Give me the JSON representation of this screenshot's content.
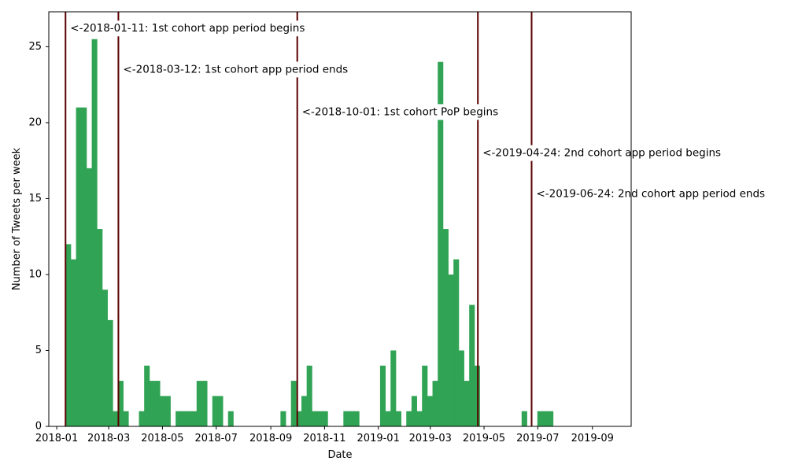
{
  "chart_data": {
    "type": "bar",
    "title": "",
    "xlabel": "Date",
    "ylabel": "Number of Tweets per week",
    "bar_color": "#31a354",
    "vline_color": "#5a0000",
    "ylim": [
      0,
      27.3
    ],
    "xlim": [
      "2017-12-23",
      "2019-10-15"
    ],
    "y_ticks": [
      0,
      5,
      10,
      15,
      20,
      25
    ],
    "x_ticks": [
      {
        "date": "2018-01-01",
        "label": "2018-01"
      },
      {
        "date": "2018-03-01",
        "label": "2018-03"
      },
      {
        "date": "2018-05-01",
        "label": "2018-05"
      },
      {
        "date": "2018-07-01",
        "label": "2018-07"
      },
      {
        "date": "2018-09-01",
        "label": "2018-09"
      },
      {
        "date": "2018-11-01",
        "label": "2018-11"
      },
      {
        "date": "2019-01-01",
        "label": "2019-01"
      },
      {
        "date": "2019-03-01",
        "label": "2019-03"
      },
      {
        "date": "2019-05-01",
        "label": "2019-05"
      },
      {
        "date": "2019-07-01",
        "label": "2019-07"
      },
      {
        "date": "2019-09-01",
        "label": "2019-09"
      }
    ],
    "bin_start": "2018-01-11",
    "bin_days": 5.95,
    "values": [
      12,
      11,
      21,
      21,
      17,
      25.5,
      13,
      9,
      7,
      1,
      3,
      1,
      0,
      0,
      1,
      4,
      3,
      3,
      2,
      2,
      0,
      1,
      1,
      1,
      1,
      3,
      3,
      0,
      2,
      2,
      0,
      1,
      0,
      0,
      0,
      0,
      0,
      0,
      0,
      0,
      0,
      1,
      0,
      3,
      1,
      2,
      4,
      1,
      1,
      1,
      0,
      0,
      0,
      1,
      1,
      1,
      0,
      0,
      0,
      0,
      4,
      1,
      5,
      1,
      0,
      1,
      2,
      1,
      4,
      2,
      3,
      24,
      13,
      10,
      11,
      5,
      3,
      8,
      4,
      0,
      0,
      0,
      0,
      0,
      0,
      0,
      0,
      1,
      0,
      0,
      1,
      1,
      1
    ],
    "annotations": [
      {
        "date": "2018-01-11",
        "y": 26.2,
        "text": "<-2018-01-11: 1st cohort app period begins"
      },
      {
        "date": "2018-03-12",
        "y": 23.5,
        "text": "<-2018-03-12: 1st cohort app period ends"
      },
      {
        "date": "2018-10-01",
        "y": 20.7,
        "text": "<-2018-10-01: 1st cohort PoP begins"
      },
      {
        "date": "2019-04-24",
        "y": 18.0,
        "text": "<-2019-04-24: 2nd cohort app period begins"
      },
      {
        "date": "2019-06-24",
        "y": 15.3,
        "text": "<-2019-06-24: 2nd cohort app period ends"
      }
    ]
  }
}
